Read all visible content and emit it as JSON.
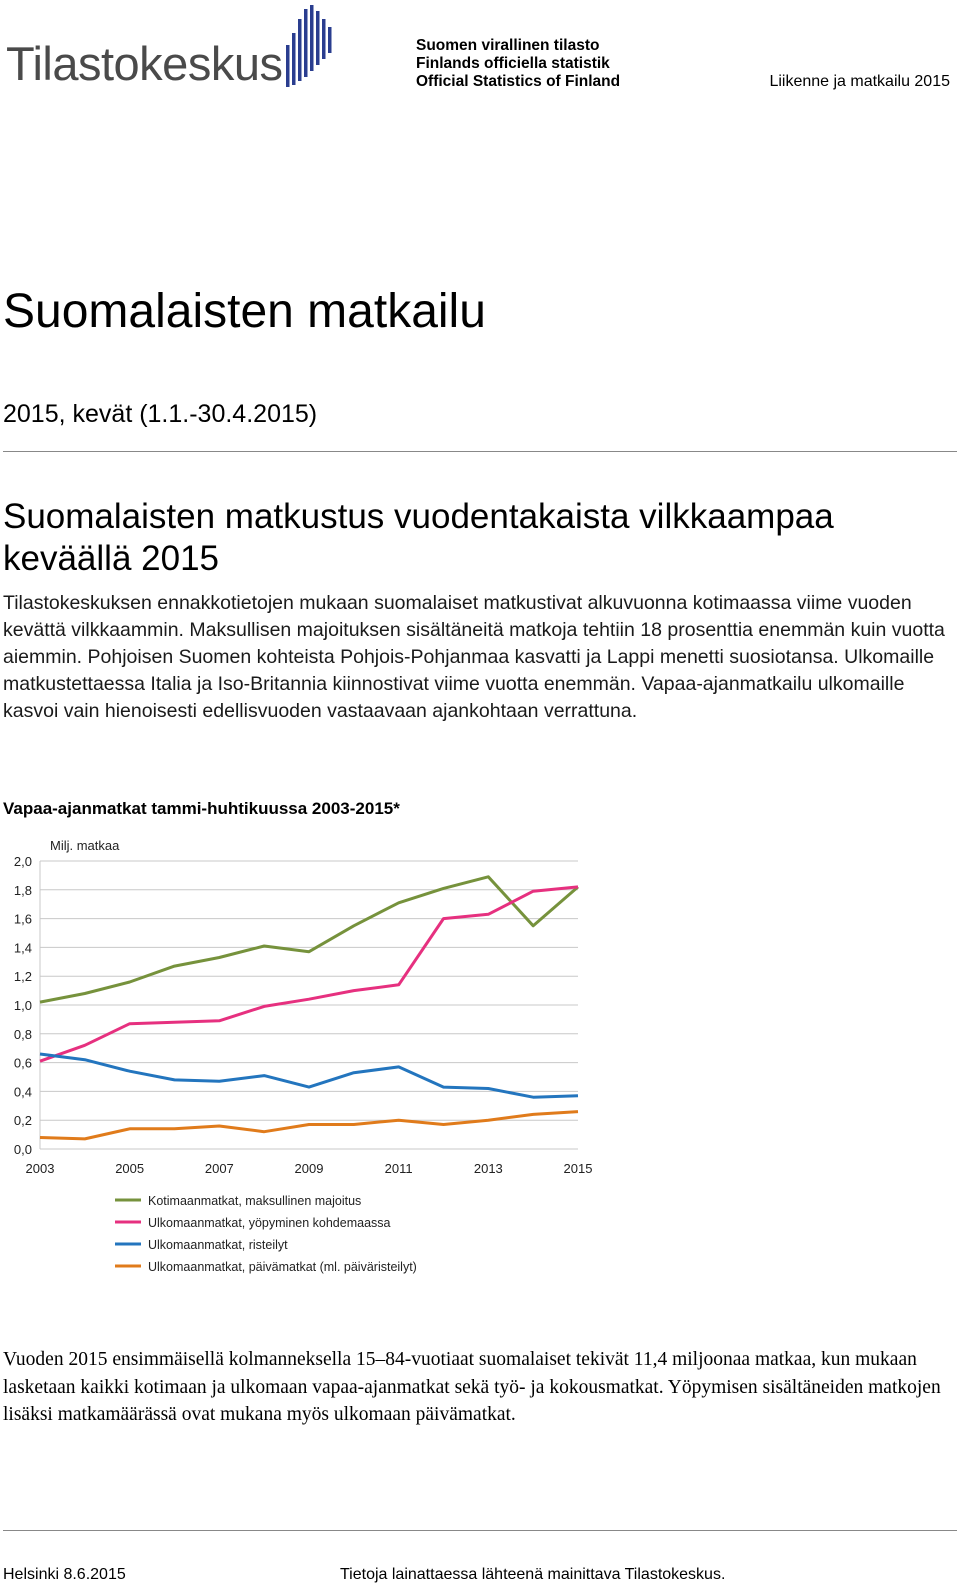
{
  "header": {
    "logo_text": "Tilastokeskus",
    "official_lines": [
      "Suomen virallinen tilasto",
      "Finlands officiella statistik",
      "Official Statistics of Finland"
    ],
    "right_text": "Liikenne ja matkailu 2015"
  },
  "doc": {
    "title": "Suomalaisten matkailu",
    "period": "2015, kevät (1.1.-30.4.2015)"
  },
  "article": {
    "headline": "Suomalaisten matkustus vuodentakaista vilkkaampaa keväällä 2015",
    "lead": "Tilastokeskuksen ennakkotietojen mukaan suomalaiset matkustivat alkuvuonna kotimaassa viime vuoden kevättä vilkkaammin. Maksullisen majoituksen sisältäneitä matkoja tehtiin 18 prosenttia enemmän kuin vuotta aiemmin. Pohjoisen Suomen kohteista Pohjois-Pohjanmaa kasvatti ja Lappi menetti suosiotansa. Ulkomaille matkustettaessa Italia ja Iso-Britannia kiinnostivat viime vuotta enemmän. Vapaa-ajanmatkailu ulkomaille kasvoi vain hienoisesti edellisvuoden vastaavaan ajankohtaan verrattuna.",
    "chart_title": "Vapaa-ajanmatkat tammi-huhtikuussa 2003-2015*",
    "body": "Vuoden 2015 ensimmäisellä kolmanneksella 15–84-vuotiaat suomalaiset tekivät 11,4 miljoonaa matkaa, kun mukaan lasketaan kaikki kotimaan ja ulkomaan vapaa-ajanmatkat sekä työ- ja kokousmatkat. Yöpymisen sisältäneiden matkojen lisäksi matkamäärässä ovat mukana myös ulkomaan päivämatkat."
  },
  "footer": {
    "date": "Helsinki 8.6.2015",
    "note": "Tietoja lainattaessa lähteenä mainittava Tilastokeskus."
  },
  "chart_data": {
    "type": "line",
    "ylabel": "Milj. matkaa",
    "x": [
      2003,
      2004,
      2005,
      2006,
      2007,
      2008,
      2009,
      2010,
      2011,
      2012,
      2013,
      2014,
      2015
    ],
    "x_tick_labels": [
      "2003",
      "2005",
      "2007",
      "2009",
      "2011",
      "2013",
      "2015"
    ],
    "x_tick_values": [
      2003,
      2005,
      2007,
      2009,
      2011,
      2013,
      2015
    ],
    "y_tick_labels": [
      "0,0",
      "0,2",
      "0,4",
      "0,6",
      "0,8",
      "1,0",
      "1,2",
      "1,4",
      "1,6",
      "1,8",
      "2,0"
    ],
    "y_tick_values": [
      0,
      0.2,
      0.4,
      0.6,
      0.8,
      1.0,
      1.2,
      1.4,
      1.6,
      1.8,
      2.0
    ],
    "ylim": [
      0,
      2.0
    ],
    "grid": "horizontal",
    "legend_position": "bottom",
    "series": [
      {
        "name": "Kotimaanmatkat, maksullinen majoitus",
        "color": "#76923c",
        "values": [
          1.02,
          1.08,
          1.16,
          1.27,
          1.33,
          1.41,
          1.37,
          1.55,
          1.71,
          1.81,
          1.89,
          1.55,
          1.82
        ]
      },
      {
        "name": "Ulkomaanmatkat, yöpyminen kohdemaassa",
        "color": "#e6307f",
        "values": [
          0.61,
          0.72,
          0.87,
          0.88,
          0.89,
          0.99,
          1.04,
          1.1,
          1.14,
          1.6,
          1.63,
          1.79,
          1.82
        ]
      },
      {
        "name": "Ulkomaanmatkat, risteilyt",
        "color": "#2375be",
        "values": [
          0.66,
          0.62,
          0.54,
          0.48,
          0.47,
          0.51,
          0.43,
          0.53,
          0.57,
          0.43,
          0.42,
          0.36,
          0.37
        ]
      },
      {
        "name": "Ulkomaanmatkat, päivämatkat (ml. päiväristeilyt)",
        "color": "#e07b1b",
        "values": [
          0.08,
          0.07,
          0.14,
          0.14,
          0.16,
          0.12,
          0.17,
          0.17,
          0.2,
          0.17,
          0.2,
          0.24,
          0.26
        ]
      }
    ]
  }
}
